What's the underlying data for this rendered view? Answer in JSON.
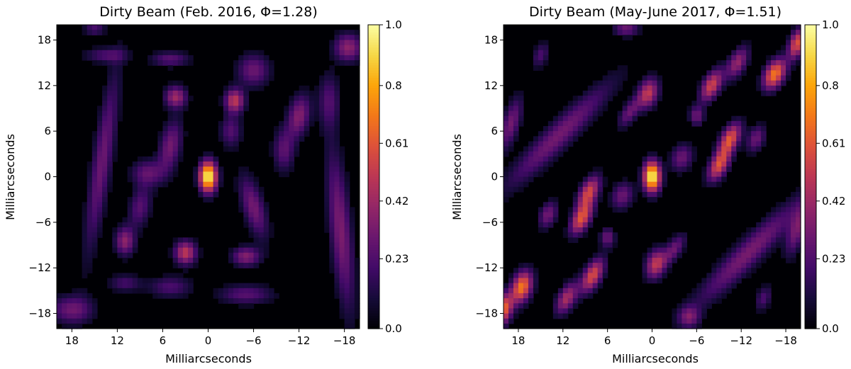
{
  "chart_data": [
    {
      "type": "heatmap",
      "title": "Dirty Beam (Feb. 2016, Φ=1.28)",
      "xlabel": "Milliarcseconds",
      "ylabel": "Milliarcseconds",
      "xlim": [
        20,
        -20
      ],
      "ylim": [
        -20,
        20
      ],
      "xticks": [
        18,
        12,
        6,
        0,
        -6,
        -12,
        -18
      ],
      "xtick_labels": [
        "18",
        "12",
        "6",
        "0",
        "−6",
        "−12",
        "−18"
      ],
      "yticks": [
        18,
        12,
        6,
        0,
        -6,
        -12,
        -18
      ],
      "ytick_labels": [
        "18",
        "12",
        "6",
        "0",
        "−6",
        "−12",
        "−18"
      ],
      "colormap": "inferno",
      "colorbar": {
        "range": [
          0.0,
          1.0
        ],
        "ticks": [
          0.0,
          0.23,
          0.42,
          0.61,
          0.8,
          1.0
        ],
        "tick_labels": [
          "0.0",
          "0.23",
          "0.42",
          "0.61",
          "0.8",
          "1.0"
        ]
      },
      "blobs": [
        {
          "x": 0.0,
          "y": 0.0,
          "sx": 0.8,
          "sy": 1.4,
          "angle": 0,
          "peak": 1.0
        },
        {
          "x": -3.5,
          "y": 10.0,
          "sx": 0.9,
          "sy": 1.1,
          "angle": 0,
          "peak": 0.5
        },
        {
          "x": 4.3,
          "y": 10.5,
          "sx": 1.0,
          "sy": 1.0,
          "angle": 0,
          "peak": 0.42
        },
        {
          "x": 3.0,
          "y": -10.0,
          "sx": 1.0,
          "sy": 1.1,
          "angle": 0,
          "peak": 0.5
        },
        {
          "x": 11.0,
          "y": -8.5,
          "sx": 0.9,
          "sy": 1.3,
          "angle": 0,
          "peak": 0.38
        },
        {
          "x": -5.0,
          "y": -10.5,
          "sx": 1.3,
          "sy": 0.9,
          "angle": 0,
          "peak": 0.36
        },
        {
          "x": 14.0,
          "y": 2.0,
          "sx": 0.9,
          "sy": 8.5,
          "angle": 0.15,
          "peak": 0.3
        },
        {
          "x": -17.5,
          "y": -7.0,
          "sx": 1.0,
          "sy": 7.5,
          "angle": -0.1,
          "peak": 0.34
        },
        {
          "x": -12.0,
          "y": 8.0,
          "sx": 1.0,
          "sy": 2.0,
          "angle": 0.2,
          "peak": 0.36
        },
        {
          "x": -6.0,
          "y": -4.0,
          "sx": 1.0,
          "sy": 3.0,
          "angle": -0.3,
          "peak": 0.32
        },
        {
          "x": 5.0,
          "y": 4.0,
          "sx": 1.0,
          "sy": 2.5,
          "angle": 0.2,
          "peak": 0.32
        },
        {
          "x": -6.0,
          "y": 14.0,
          "sx": 1.5,
          "sy": 1.5,
          "angle": 0,
          "peak": 0.3
        },
        {
          "x": -18.5,
          "y": 17.0,
          "sx": 1.3,
          "sy": 1.3,
          "angle": 0,
          "peak": 0.38
        },
        {
          "x": 18.0,
          "y": -17.5,
          "sx": 2.0,
          "sy": 1.3,
          "angle": 0,
          "peak": 0.3
        },
        {
          "x": -5.0,
          "y": -15.5,
          "sx": 2.5,
          "sy": 0.9,
          "angle": 0,
          "peak": 0.25
        },
        {
          "x": 5.0,
          "y": -14.5,
          "sx": 2.0,
          "sy": 1.0,
          "angle": 0,
          "peak": 0.22
        },
        {
          "x": 8.0,
          "y": 0.5,
          "sx": 1.5,
          "sy": 1.2,
          "angle": 0,
          "peak": 0.27
        },
        {
          "x": 5.0,
          "y": 15.5,
          "sx": 1.8,
          "sy": 0.7,
          "angle": 0,
          "peak": 0.25
        },
        {
          "x": 13.5,
          "y": 16.0,
          "sx": 2.0,
          "sy": 0.7,
          "angle": 0,
          "peak": 0.22
        },
        {
          "x": 9.0,
          "y": -4.0,
          "sx": 1.0,
          "sy": 2.0,
          "angle": 0.2,
          "peak": 0.25
        },
        {
          "x": -10.0,
          "y": 3.5,
          "sx": 1.0,
          "sy": 2.0,
          "angle": 0,
          "peak": 0.26
        },
        {
          "x": -3.0,
          "y": 6.0,
          "sx": 1.0,
          "sy": 1.5,
          "angle": 0,
          "peak": 0.24
        },
        {
          "x": -16.0,
          "y": 10.0,
          "sx": 1.0,
          "sy": 2.5,
          "angle": 0,
          "peak": 0.22
        },
        {
          "x": 15.0,
          "y": 19.5,
          "sx": 1.0,
          "sy": 0.6,
          "angle": 0,
          "peak": 0.22
        },
        {
          "x": 11.0,
          "y": -14.0,
          "sx": 1.5,
          "sy": 0.8,
          "angle": 0,
          "peak": 0.2
        }
      ]
    },
    {
      "type": "heatmap",
      "title": "Dirty Beam (May-June 2017, Φ=1.51)",
      "xlabel": "Milliarcseconds",
      "ylabel": "Milliarcseconds",
      "xlim": [
        20,
        -20
      ],
      "ylim": [
        -20,
        20
      ],
      "xticks": [
        18,
        12,
        6,
        0,
        -6,
        -12,
        -18
      ],
      "xtick_labels": [
        "18",
        "12",
        "6",
        "0",
        "−6",
        "−12",
        "−18"
      ],
      "yticks": [
        18,
        12,
        6,
        0,
        -6,
        -12,
        -18
      ],
      "ytick_labels": [
        "18",
        "12",
        "6",
        "0",
        "−6",
        "−12",
        "−18"
      ],
      "colormap": "inferno",
      "colorbar": {
        "range": [
          0.0,
          1.0
        ],
        "ticks": [
          0.0,
          0.23,
          0.42,
          0.61,
          0.8,
          1.0
        ],
        "tick_labels": [
          "0.0",
          "0.23",
          "0.42",
          "0.61",
          "0.8",
          "1.0"
        ]
      },
      "blobs": [
        {
          "x": 0.0,
          "y": 0.0,
          "sx": 0.8,
          "sy": 1.4,
          "angle": 0,
          "peak": 1.0
        },
        {
          "x": 8.5,
          "y": -2.0,
          "sx": 0.8,
          "sy": 1.6,
          "angle": 0.5,
          "peak": 0.55
        },
        {
          "x": 9.5,
          "y": -5.5,
          "sx": 0.8,
          "sy": 1.6,
          "angle": 0.5,
          "peak": 0.6
        },
        {
          "x": -9.0,
          "y": 1.5,
          "sx": 0.8,
          "sy": 1.6,
          "angle": 0.5,
          "peak": 0.58
        },
        {
          "x": -10.5,
          "y": 5.0,
          "sx": 0.8,
          "sy": 1.6,
          "angle": 0.5,
          "peak": 0.6
        },
        {
          "x": -8.0,
          "y": 12.0,
          "sx": 0.8,
          "sy": 1.6,
          "angle": 0.5,
          "peak": 0.55
        },
        {
          "x": -11.5,
          "y": 15.0,
          "sx": 0.8,
          "sy": 1.6,
          "angle": 0.5,
          "peak": 0.4
        },
        {
          "x": -16.5,
          "y": 13.5,
          "sx": 0.9,
          "sy": 1.5,
          "angle": 0.5,
          "peak": 0.7
        },
        {
          "x": -19.5,
          "y": 17.5,
          "sx": 0.7,
          "sy": 1.4,
          "angle": 0.3,
          "peak": 0.6
        },
        {
          "x": 8.0,
          "y": -13.0,
          "sx": 0.8,
          "sy": 1.7,
          "angle": 0.5,
          "peak": 0.58
        },
        {
          "x": 11.5,
          "y": -16.0,
          "sx": 0.8,
          "sy": 1.6,
          "angle": 0.5,
          "peak": 0.45
        },
        {
          "x": 17.5,
          "y": -14.5,
          "sx": 0.9,
          "sy": 1.5,
          "angle": 0.3,
          "peak": 0.7
        },
        {
          "x": 20.0,
          "y": -17.5,
          "sx": 0.8,
          "sy": 1.5,
          "angle": 0.3,
          "peak": 0.65
        },
        {
          "x": 0.5,
          "y": 11.0,
          "sx": 0.9,
          "sy": 1.4,
          "angle": 0.3,
          "peak": 0.5
        },
        {
          "x": -0.5,
          "y": -11.5,
          "sx": 0.9,
          "sy": 1.4,
          "angle": 0.3,
          "peak": 0.5
        },
        {
          "x": 3.0,
          "y": 8.5,
          "sx": 0.7,
          "sy": 1.6,
          "angle": 0.6,
          "peak": 0.3
        },
        {
          "x": -3.0,
          "y": -9.5,
          "sx": 0.7,
          "sy": 1.6,
          "angle": 0.6,
          "peak": 0.3
        },
        {
          "x": 12.5,
          "y": 5.5,
          "sx": 1.2,
          "sy": 7.0,
          "angle": 0.8,
          "peak": 0.32
        },
        {
          "x": -13.0,
          "y": -10.0,
          "sx": 1.2,
          "sy": 7.0,
          "angle": 0.8,
          "peak": 0.33
        },
        {
          "x": 19.0,
          "y": 7.0,
          "sx": 0.8,
          "sy": 2.5,
          "angle": 0.3,
          "peak": 0.32
        },
        {
          "x": -19.5,
          "y": -7.0,
          "sx": 0.8,
          "sy": 2.5,
          "angle": 0.3,
          "peak": 0.32
        },
        {
          "x": 4.0,
          "y": -2.5,
          "sx": 1.0,
          "sy": 1.3,
          "angle": 0.4,
          "peak": 0.3
        },
        {
          "x": -4.0,
          "y": 2.5,
          "sx": 1.0,
          "sy": 1.3,
          "angle": 0.4,
          "peak": 0.3
        },
        {
          "x": 14.0,
          "y": -5.0,
          "sx": 0.8,
          "sy": 1.3,
          "angle": 0.4,
          "peak": 0.32
        },
        {
          "x": -14.0,
          "y": 5.0,
          "sx": 0.8,
          "sy": 1.3,
          "angle": 0.4,
          "peak": 0.3
        },
        {
          "x": -5.0,
          "y": -18.5,
          "sx": 1.0,
          "sy": 1.0,
          "angle": 0,
          "peak": 0.3
        },
        {
          "x": 3.5,
          "y": 19.5,
          "sx": 1.2,
          "sy": 0.7,
          "angle": 0,
          "peak": 0.3
        },
        {
          "x": -6.0,
          "y": 8.0,
          "sx": 0.7,
          "sy": 0.9,
          "angle": 0,
          "peak": 0.3
        },
        {
          "x": 6.0,
          "y": -8.0,
          "sx": 0.7,
          "sy": 0.9,
          "angle": 0,
          "peak": 0.3
        },
        {
          "x": 15.0,
          "y": 16.0,
          "sx": 0.7,
          "sy": 1.2,
          "angle": 0.4,
          "peak": 0.22
        },
        {
          "x": -15.0,
          "y": -16.0,
          "sx": 0.7,
          "sy": 1.2,
          "angle": 0.4,
          "peak": 0.22
        }
      ]
    }
  ]
}
